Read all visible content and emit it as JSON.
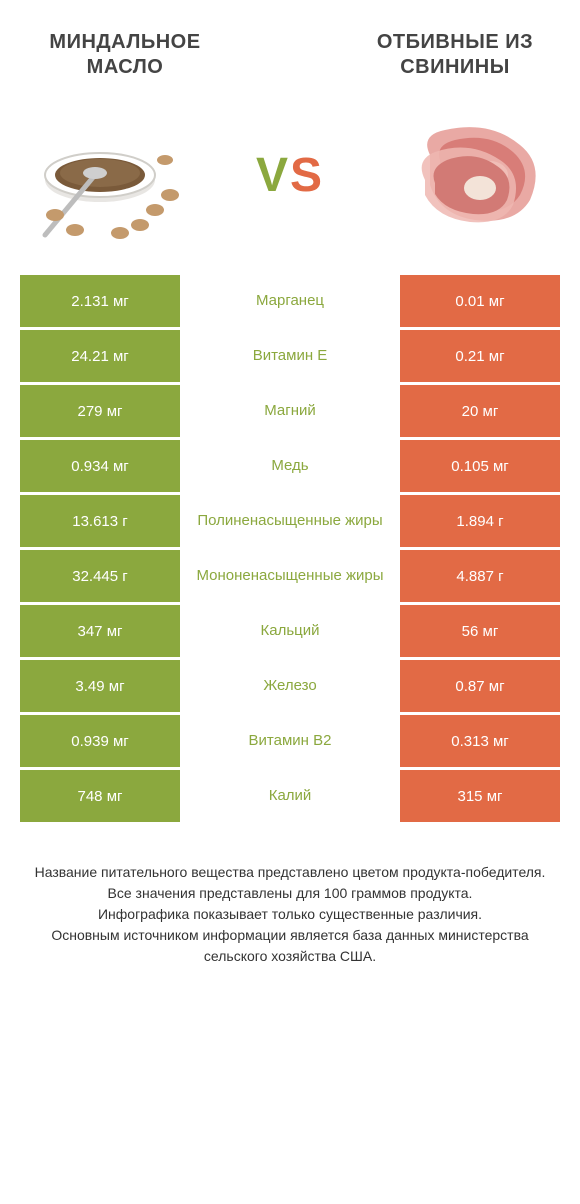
{
  "colors": {
    "left_bg": "#8ba83e",
    "right_bg": "#e26a45",
    "mid_text_left": "#8ba83e",
    "mid_text_right": "#e26a45",
    "title_text": "#444444",
    "foot_text": "#333333",
    "background": "#ffffff"
  },
  "header": {
    "left_title": "МИНДАЛЬНОЕ МАСЛО",
    "right_title": "ОТБИВНЫЕ ИЗ СВИНИНЫ",
    "vs_v": "V",
    "vs_s": "S"
  },
  "rows": [
    {
      "left": "2.131 мг",
      "mid": "Марганец",
      "right": "0.01 мг",
      "winner": "left"
    },
    {
      "left": "24.21 мг",
      "mid": "Витамин E",
      "right": "0.21 мг",
      "winner": "left"
    },
    {
      "left": "279 мг",
      "mid": "Магний",
      "right": "20 мг",
      "winner": "left"
    },
    {
      "left": "0.934 мг",
      "mid": "Медь",
      "right": "0.105 мг",
      "winner": "left"
    },
    {
      "left": "13.613 г",
      "mid": "Полиненасыщенные жиры",
      "right": "1.894 г",
      "winner": "left"
    },
    {
      "left": "32.445 г",
      "mid": "Мононенасыщенные жиры",
      "right": "4.887 г",
      "winner": "left"
    },
    {
      "left": "347 мг",
      "mid": "Кальций",
      "right": "56 мг",
      "winner": "left"
    },
    {
      "left": "3.49 мг",
      "mid": "Железо",
      "right": "0.87 мг",
      "winner": "left"
    },
    {
      "left": "0.939 мг",
      "mid": "Витамин B2",
      "right": "0.313 мг",
      "winner": "left"
    },
    {
      "left": "748 мг",
      "mid": "Калий",
      "right": "315 мг",
      "winner": "left"
    }
  ],
  "footer": {
    "l1": "Название питательного вещества представлено цветом продукта-победителя.",
    "l2": "Все значения представлены для 100 граммов продукта.",
    "l3": "Инфографика показывает только существенные различия.",
    "l4": "Основным источником информации является база данных министерства сельского хозяйства США."
  }
}
